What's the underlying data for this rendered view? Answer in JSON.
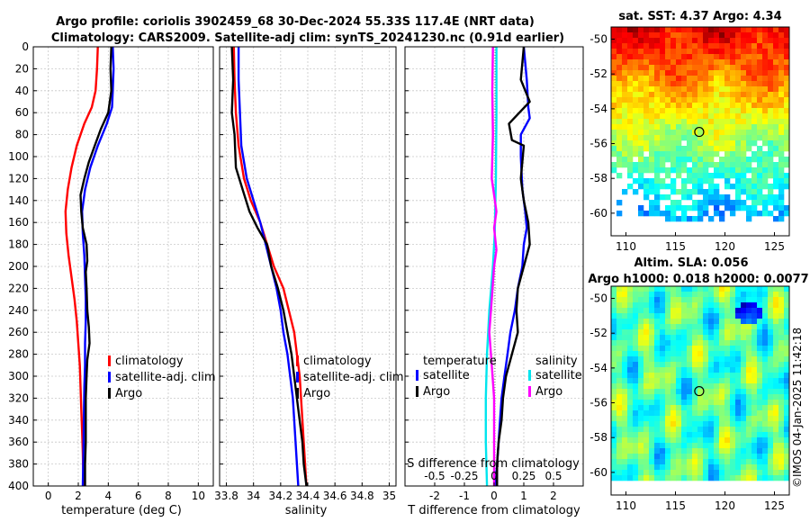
{
  "figure": {
    "title_line1": "Argo profile: coriolis 3902459_68 30-Dec-2024 55.33S 117.4E (NRT data)",
    "title_line2": "Climatology: CARS2009. Satellite-adj clim: synTS_20241230.nc (0.91d earlier)",
    "copyright": "©IMOS 04-Jan-2025 11:42:18"
  },
  "chart_data": [
    {
      "id": "temperature",
      "type": "line",
      "xlabel": "temperature (deg C)",
      "ylabel": "",
      "xlim": [
        -1,
        11
      ],
      "ylim": [
        400,
        0
      ],
      "xticks": [
        "0",
        "2",
        "4",
        "6",
        "8",
        "10"
      ],
      "yticks": [
        "0",
        "20",
        "40",
        "60",
        "80",
        "100",
        "120",
        "140",
        "160",
        "180",
        "200",
        "220",
        "240",
        "260",
        "280",
        "300",
        "320",
        "340",
        "360",
        "380",
        "400"
      ],
      "legend": [
        "climatology",
        "satellite-adj. clim",
        "Argo"
      ],
      "series": [
        {
          "name": "climatology",
          "color": "#ff0000",
          "points": [
            [
              3.3,
              0
            ],
            [
              3.25,
              20
            ],
            [
              3.15,
              40
            ],
            [
              2.9,
              55
            ],
            [
              2.4,
              70
            ],
            [
              1.9,
              90
            ],
            [
              1.55,
              110
            ],
            [
              1.3,
              130
            ],
            [
              1.15,
              150
            ],
            [
              1.2,
              170
            ],
            [
              1.35,
              190
            ],
            [
              1.55,
              210
            ],
            [
              1.75,
              230
            ],
            [
              1.9,
              250
            ],
            [
              2.0,
              270
            ],
            [
              2.1,
              290
            ],
            [
              2.15,
              310
            ],
            [
              2.2,
              330
            ],
            [
              2.25,
              350
            ],
            [
              2.3,
              370
            ],
            [
              2.35,
              400
            ]
          ]
        },
        {
          "name": "satellite-adj. clim",
          "color": "#0000ff",
          "points": [
            [
              4.3,
              0
            ],
            [
              4.35,
              20
            ],
            [
              4.3,
              40
            ],
            [
              4.25,
              55
            ],
            [
              3.9,
              70
            ],
            [
              3.3,
              90
            ],
            [
              2.8,
              110
            ],
            [
              2.45,
              130
            ],
            [
              2.25,
              150
            ],
            [
              2.3,
              170
            ],
            [
              2.4,
              190
            ],
            [
              2.45,
              210
            ],
            [
              2.5,
              230
            ],
            [
              2.5,
              250
            ],
            [
              2.45,
              270
            ],
            [
              2.45,
              290
            ],
            [
              2.4,
              310
            ],
            [
              2.38,
              330
            ],
            [
              2.36,
              350
            ],
            [
              2.34,
              370
            ],
            [
              2.3,
              400
            ]
          ]
        },
        {
          "name": "Argo",
          "color": "#000000",
          "points": [
            [
              4.2,
              0
            ],
            [
              4.15,
              20
            ],
            [
              4.2,
              40
            ],
            [
              4.0,
              60
            ],
            [
              3.5,
              75
            ],
            [
              3.1,
              90
            ],
            [
              2.7,
              105
            ],
            [
              2.4,
              120
            ],
            [
              2.15,
              135
            ],
            [
              2.2,
              150
            ],
            [
              2.3,
              165
            ],
            [
              2.55,
              180
            ],
            [
              2.6,
              195
            ],
            [
              2.5,
              205
            ],
            [
              2.55,
              220
            ],
            [
              2.6,
              240
            ],
            [
              2.7,
              255
            ],
            [
              2.75,
              270
            ],
            [
              2.6,
              285
            ],
            [
              2.55,
              300
            ],
            [
              2.5,
              320
            ],
            [
              2.5,
              340
            ],
            [
              2.5,
              360
            ],
            [
              2.45,
              380
            ],
            [
              2.45,
              400
            ]
          ]
        }
      ]
    },
    {
      "id": "salinity",
      "type": "line",
      "xlabel": "salinity",
      "ylabel": "",
      "xlim": [
        33.75,
        35.05
      ],
      "ylim": [
        400,
        0
      ],
      "xticks": [
        "33.8",
        "34",
        "34.2",
        "34.4",
        "34.6",
        "34.8",
        "35"
      ],
      "legend": [
        "climatology",
        "satellite-adj. clim",
        "Argo"
      ],
      "series": [
        {
          "name": "climatology",
          "color": "#ff0000",
          "points": [
            [
              33.855,
              0
            ],
            [
              33.86,
              30
            ],
            [
              33.87,
              60
            ],
            [
              33.89,
              90
            ],
            [
              33.93,
              120
            ],
            [
              33.98,
              140
            ],
            [
              34.05,
              160
            ],
            [
              34.1,
              180
            ],
            [
              34.15,
              200
            ],
            [
              34.22,
              220
            ],
            [
              34.26,
              240
            ],
            [
              34.3,
              260
            ],
            [
              34.32,
              280
            ],
            [
              34.34,
              300
            ],
            [
              34.35,
              320
            ],
            [
              34.36,
              340
            ],
            [
              34.37,
              360
            ],
            [
              34.38,
              380
            ],
            [
              34.39,
              400
            ]
          ]
        },
        {
          "name": "satellite-adj. clim",
          "color": "#0000ff",
          "points": [
            [
              33.89,
              0
            ],
            [
              33.89,
              30
            ],
            [
              33.9,
              60
            ],
            [
              33.91,
              90
            ],
            [
              33.95,
              120
            ],
            [
              34.0,
              140
            ],
            [
              34.05,
              160
            ],
            [
              34.09,
              180
            ],
            [
              34.13,
              200
            ],
            [
              34.17,
              220
            ],
            [
              34.2,
              240
            ],
            [
              34.22,
              260
            ],
            [
              34.25,
              280
            ],
            [
              34.27,
              300
            ],
            [
              34.29,
              320
            ],
            [
              34.3,
              340
            ],
            [
              34.31,
              360
            ],
            [
              34.32,
              380
            ],
            [
              34.33,
              400
            ]
          ]
        },
        {
          "name": "Argo",
          "color": "#000000",
          "points": [
            [
              33.84,
              0
            ],
            [
              33.85,
              30
            ],
            [
              33.84,
              60
            ],
            [
              33.86,
              80
            ],
            [
              33.87,
              110
            ],
            [
              33.92,
              130
            ],
            [
              33.97,
              150
            ],
            [
              34.03,
              165
            ],
            [
              34.1,
              180
            ],
            [
              34.13,
              200
            ],
            [
              34.18,
              220
            ],
            [
              34.22,
              240
            ],
            [
              34.25,
              260
            ],
            [
              34.28,
              280
            ],
            [
              34.3,
              300
            ],
            [
              34.33,
              330
            ],
            [
              34.36,
              360
            ],
            [
              34.37,
              380
            ],
            [
              34.39,
              400
            ]
          ]
        }
      ]
    },
    {
      "id": "differences",
      "type": "line",
      "xlabel": "T difference from climatology",
      "x2label": "S difference from climatology",
      "xlim": [
        -3,
        3
      ],
      "ylim": [
        400,
        0
      ],
      "xticks": [
        "-2",
        "-1",
        "0",
        "1",
        "2"
      ],
      "x2ticks": [
        "-0.5",
        "-0.25",
        "0",
        "0.25",
        "0.5"
      ],
      "legend_t_title": "temperature",
      "legend_s_title": "salinity",
      "legend_t": [
        "satellite",
        "Argo"
      ],
      "legend_s": [
        "satellite",
        "Argo"
      ],
      "series": [
        {
          "name": "T satellite",
          "color": "#0000ff",
          "points": [
            [
              1.0,
              0
            ],
            [
              1.1,
              30
            ],
            [
              1.15,
              55
            ],
            [
              1.2,
              65
            ],
            [
              0.9,
              80
            ],
            [
              0.9,
              100
            ],
            [
              0.95,
              130
            ],
            [
              1.05,
              150
            ],
            [
              1.1,
              165
            ],
            [
              1.0,
              180
            ],
            [
              0.95,
              200
            ],
            [
              0.8,
              220
            ],
            [
              0.7,
              240
            ],
            [
              0.55,
              260
            ],
            [
              0.45,
              280
            ],
            [
              0.35,
              300
            ],
            [
              0.25,
              320
            ],
            [
              0.2,
              340
            ],
            [
              0.15,
              360
            ],
            [
              0.1,
              380
            ],
            [
              0.05,
              400
            ]
          ]
        },
        {
          "name": "T Argo",
          "color": "#000000",
          "points": [
            [
              1.0,
              0
            ],
            [
              0.9,
              30
            ],
            [
              1.2,
              50
            ],
            [
              0.5,
              70
            ],
            [
              0.6,
              85
            ],
            [
              1.0,
              90
            ],
            [
              0.9,
              120
            ],
            [
              1.0,
              140
            ],
            [
              1.15,
              160
            ],
            [
              1.2,
              180
            ],
            [
              1.0,
              200
            ],
            [
              0.8,
              220
            ],
            [
              0.75,
              240
            ],
            [
              0.8,
              260
            ],
            [
              0.6,
              280
            ],
            [
              0.4,
              300
            ],
            [
              0.3,
              320
            ],
            [
              0.25,
              340
            ],
            [
              0.15,
              360
            ],
            [
              0.1,
              380
            ],
            [
              0.1,
              400
            ]
          ]
        },
        {
          "name": "S satellite",
          "color": "#00e5ee",
          "points": [
            [
              0.02,
              0
            ],
            [
              0.02,
              60
            ],
            [
              0.015,
              120
            ],
            [
              0.005,
              170
            ],
            [
              -0.01,
              200
            ],
            [
              -0.04,
              240
            ],
            [
              -0.06,
              280
            ],
            [
              -0.07,
              320
            ],
            [
              -0.07,
              360
            ],
            [
              -0.06,
              400
            ]
          ]
        },
        {
          "name": "S Argo",
          "color": "#ff00ff",
          "points": [
            [
              -0.01,
              0
            ],
            [
              -0.015,
              40
            ],
            [
              -0.01,
              80
            ],
            [
              -0.02,
              120
            ],
            [
              0.02,
              150
            ],
            [
              0.0,
              165
            ],
            [
              0.02,
              185
            ],
            [
              0.0,
              200
            ],
            [
              -0.02,
              230
            ],
            [
              -0.04,
              260
            ],
            [
              -0.02,
              290
            ],
            [
              0.0,
              320
            ],
            [
              0.0,
              360
            ],
            [
              0.0,
              400
            ]
          ]
        }
      ]
    },
    {
      "id": "sat_sst_map",
      "type": "heatmap",
      "title": "sat. SST: 4.37 Argo: 4.34",
      "xlim": [
        108.5,
        126.5
      ],
      "ylim": [
        -61.3,
        -49.3
      ],
      "xticks": [
        "110",
        "115",
        "120",
        "125"
      ],
      "yticks": [
        "-50",
        "-52",
        "-54",
        "-56",
        "-58",
        "-60"
      ],
      "marker": [
        117.4,
        -55.33
      ]
    },
    {
      "id": "sla_map",
      "type": "heatmap",
      "title_line1": "Altim. SLA: 0.056",
      "title_line2": "Argo h1000: 0.018 h2000: 0.0077",
      "xlim": [
        108.5,
        126.5
      ],
      "ylim": [
        -61.3,
        -49.3
      ],
      "xticks": [
        "110",
        "115",
        "120",
        "125"
      ],
      "yticks": [
        "-50",
        "-52",
        "-54",
        "-56",
        "-58",
        "-60"
      ],
      "marker": [
        117.4,
        -55.33
      ]
    }
  ]
}
